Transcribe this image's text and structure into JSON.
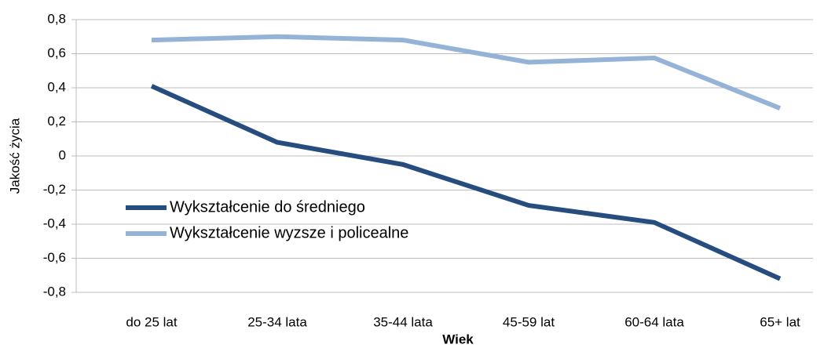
{
  "chart_data": {
    "type": "line",
    "x_label": "Wiek",
    "y_label": "Jakość życia",
    "categories": [
      "do 25 lat",
      "25-34 lata",
      "35-44 lata",
      "45-59 lat",
      "60-64 lata",
      "65+ lat"
    ],
    "series": [
      {
        "name": "Wykształcenie do średniego",
        "color": "#264d7e",
        "values": [
          0.41,
          0.08,
          -0.05,
          -0.29,
          -0.39,
          -0.72
        ]
      },
      {
        "name": "Wykształcenie wyzsze i policealne",
        "color": "#95b3d7",
        "values": [
          0.68,
          0.7,
          0.68,
          0.55,
          0.575,
          0.28
        ]
      }
    ],
    "ylim": [
      -0.8,
      0.8
    ],
    "yticks": [
      {
        "value": -0.8,
        "label": "-0,8"
      },
      {
        "value": -0.6,
        "label": "-0,6"
      },
      {
        "value": -0.4,
        "label": "-0,4"
      },
      {
        "value": -0.2,
        "label": "-0,2"
      },
      0,
      {
        "value": 0.2,
        "label": "0,2"
      },
      {
        "value": 0.4,
        "label": "0,4"
      },
      {
        "value": 0.6,
        "label": "0,6"
      },
      {
        "value": 0.8,
        "label": "0,8"
      }
    ],
    "grid": true,
    "legend": "left"
  }
}
